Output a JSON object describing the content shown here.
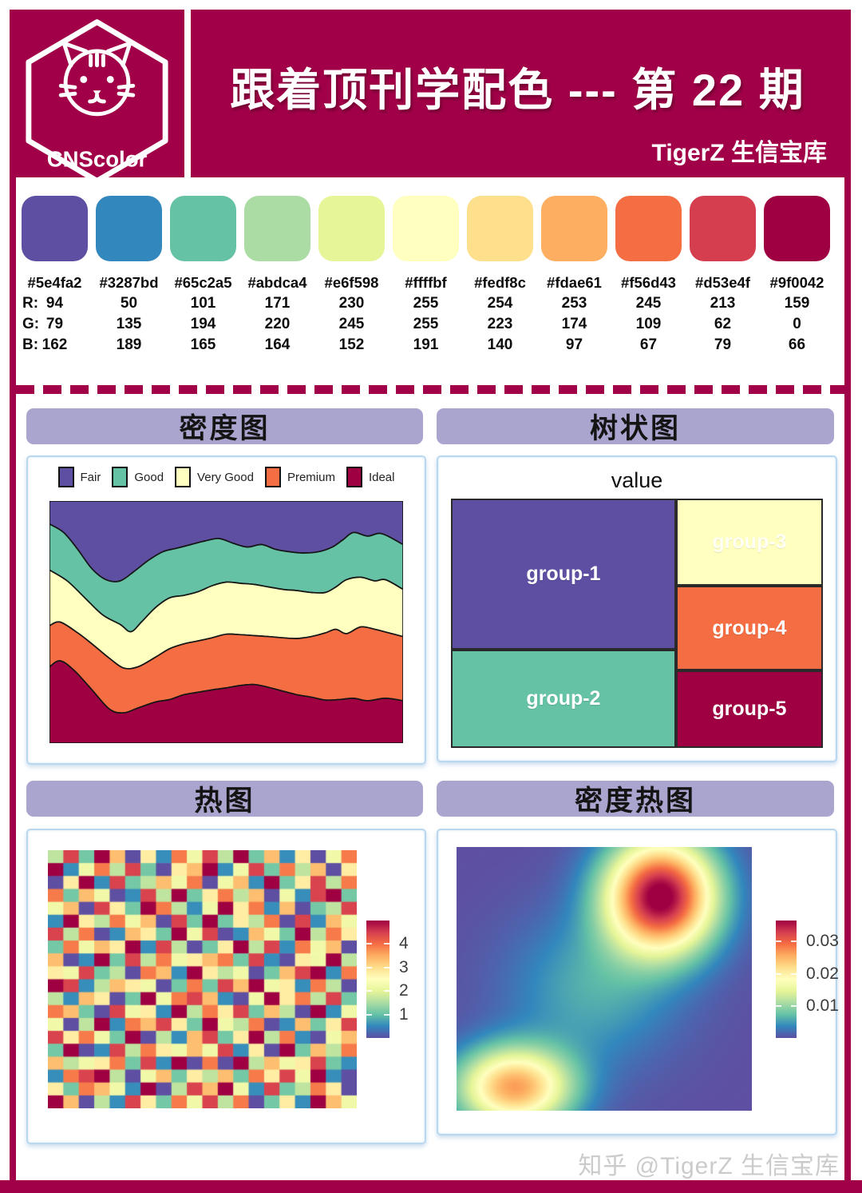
{
  "header": {
    "logo_text": "CNScolor",
    "title": "跟着顶刊学配色 --- 第 22 期",
    "subtitle": "TigerZ 生信宝库"
  },
  "palette": {
    "row_labels": [
      "R:",
      "G:",
      "B:"
    ],
    "swatches": [
      {
        "hex": "#5e4fa2",
        "rgb": [
          94,
          79,
          162
        ]
      },
      {
        "hex": "#3287bd",
        "rgb": [
          50,
          135,
          189
        ]
      },
      {
        "hex": "#65c2a5",
        "rgb": [
          101,
          194,
          165
        ]
      },
      {
        "hex": "#abdca4",
        "rgb": [
          171,
          220,
          164
        ]
      },
      {
        "hex": "#e6f598",
        "rgb": [
          230,
          245,
          152
        ]
      },
      {
        "hex": "#ffffbf",
        "rgb": [
          255,
          255,
          191
        ]
      },
      {
        "hex": "#fedf8c",
        "rgb": [
          254,
          223,
          140
        ]
      },
      {
        "hex": "#fdae61",
        "rgb": [
          253,
          174,
          97
        ]
      },
      {
        "hex": "#f56d43",
        "rgb": [
          245,
          109,
          67
        ]
      },
      {
        "hex": "#d53e4f",
        "rgb": [
          213,
          62,
          79
        ]
      },
      {
        "hex": "#9f0042",
        "rgb": [
          159,
          0,
          66
        ]
      }
    ]
  },
  "panel_titles": {
    "density": "密度图",
    "treemap": "树状图",
    "heatmap": "热图",
    "density2d": "密度热图"
  },
  "chart_data": [
    {
      "type": "area",
      "name": "stacked-density",
      "legend": [
        "Fair",
        "Good",
        "Very Good",
        "Premium",
        "Ideal"
      ],
      "colors": [
        "#5e4fa2",
        "#65c2a5",
        "#ffffbf",
        "#f56d43",
        "#9f0042"
      ],
      "note": "boundaries are [x,y] fractions of plot box, y measured from top",
      "boundaries": {
        "fair_good": [
          [
            0,
            0.095
          ],
          [
            0.04,
            0.13
          ],
          [
            0.08,
            0.2
          ],
          [
            0.12,
            0.28
          ],
          [
            0.16,
            0.325
          ],
          [
            0.2,
            0.33
          ],
          [
            0.24,
            0.29
          ],
          [
            0.28,
            0.245
          ],
          [
            0.32,
            0.21
          ],
          [
            0.36,
            0.195
          ],
          [
            0.4,
            0.18
          ],
          [
            0.44,
            0.165
          ],
          [
            0.48,
            0.155
          ],
          [
            0.52,
            0.175
          ],
          [
            0.56,
            0.19
          ],
          [
            0.6,
            0.18
          ],
          [
            0.64,
            0.2
          ],
          [
            0.68,
            0.21
          ],
          [
            0.72,
            0.215
          ],
          [
            0.76,
            0.21
          ],
          [
            0.8,
            0.19
          ],
          [
            0.83,
            0.16
          ],
          [
            0.86,
            0.13
          ],
          [
            0.9,
            0.145
          ],
          [
            0.94,
            0.135
          ],
          [
            1,
            0.18
          ]
        ],
        "good_verygood": [
          [
            0,
            0.285
          ],
          [
            0.05,
            0.33
          ],
          [
            0.1,
            0.4
          ],
          [
            0.15,
            0.47
          ],
          [
            0.2,
            0.51
          ],
          [
            0.23,
            0.54
          ],
          [
            0.26,
            0.5
          ],
          [
            0.3,
            0.44
          ],
          [
            0.34,
            0.4
          ],
          [
            0.38,
            0.39
          ],
          [
            0.42,
            0.375
          ],
          [
            0.46,
            0.35
          ],
          [
            0.5,
            0.335
          ],
          [
            0.54,
            0.34
          ],
          [
            0.58,
            0.345
          ],
          [
            0.62,
            0.355
          ],
          [
            0.66,
            0.365
          ],
          [
            0.7,
            0.37
          ],
          [
            0.74,
            0.378
          ],
          [
            0.78,
            0.378
          ],
          [
            0.81,
            0.355
          ],
          [
            0.84,
            0.325
          ],
          [
            0.88,
            0.315
          ],
          [
            0.92,
            0.33
          ],
          [
            0.95,
            0.325
          ],
          [
            1,
            0.365
          ]
        ],
        "verygood_premium": [
          [
            0,
            0.515
          ],
          [
            0.03,
            0.5
          ],
          [
            0.08,
            0.545
          ],
          [
            0.12,
            0.59
          ],
          [
            0.17,
            0.65
          ],
          [
            0.21,
            0.69
          ],
          [
            0.25,
            0.685
          ],
          [
            0.3,
            0.645
          ],
          [
            0.34,
            0.61
          ],
          [
            0.38,
            0.59
          ],
          [
            0.42,
            0.578
          ],
          [
            0.46,
            0.565
          ],
          [
            0.5,
            0.55
          ],
          [
            0.54,
            0.552
          ],
          [
            0.58,
            0.556
          ],
          [
            0.62,
            0.56
          ],
          [
            0.66,
            0.565
          ],
          [
            0.7,
            0.568
          ],
          [
            0.74,
            0.56
          ],
          [
            0.78,
            0.545
          ],
          [
            0.81,
            0.53
          ],
          [
            0.84,
            0.548
          ],
          [
            0.88,
            0.52
          ],
          [
            0.92,
            0.53
          ],
          [
            0.96,
            0.545
          ],
          [
            1,
            0.56
          ]
        ],
        "premium_ideal": [
          [
            0,
            0.685
          ],
          [
            0.03,
            0.66
          ],
          [
            0.07,
            0.7
          ],
          [
            0.12,
            0.78
          ],
          [
            0.17,
            0.86
          ],
          [
            0.21,
            0.875
          ],
          [
            0.25,
            0.855
          ],
          [
            0.3,
            0.83
          ],
          [
            0.34,
            0.82
          ],
          [
            0.38,
            0.8
          ],
          [
            0.42,
            0.79
          ],
          [
            0.46,
            0.78
          ],
          [
            0.5,
            0.772
          ],
          [
            0.54,
            0.762
          ],
          [
            0.58,
            0.758
          ],
          [
            0.62,
            0.77
          ],
          [
            0.66,
            0.785
          ],
          [
            0.7,
            0.8
          ],
          [
            0.74,
            0.81
          ],
          [
            0.78,
            0.822
          ],
          [
            0.82,
            0.82
          ],
          [
            0.86,
            0.815
          ],
          [
            0.9,
            0.825
          ],
          [
            0.95,
            0.815
          ],
          [
            1,
            0.825
          ]
        ]
      }
    },
    {
      "type": "treemap",
      "title": "value",
      "groups": [
        {
          "label": "group-1",
          "color": "#5e4fa2",
          "x": 0,
          "y": 0,
          "w": 0.605,
          "h": 0.606
        },
        {
          "label": "group-2",
          "color": "#65c2a5",
          "x": 0,
          "y": 0.606,
          "w": 0.605,
          "h": 0.394
        },
        {
          "label": "group-3",
          "color": "#ffffbf",
          "x": 0.605,
          "y": 0,
          "w": 0.395,
          "h": 0.35
        },
        {
          "label": "group-4",
          "color": "#f56d43",
          "x": 0.605,
          "y": 0.35,
          "w": 0.395,
          "h": 0.34
        },
        {
          "label": "group-5",
          "color": "#9f0042",
          "x": 0.605,
          "y": 0.69,
          "w": 0.395,
          "h": 0.31
        }
      ]
    },
    {
      "type": "heatmap",
      "grid_size": [
        20,
        20
      ],
      "value_scale": {
        "digit_max": 9,
        "value_max": 5
      },
      "colorbar_ticks": [
        4,
        3,
        2,
        1
      ],
      "rows": [
        "38296051748392615047",
        "91473820569148273605",
        "05918236470461925837",
        "72640183925736041892",
        "46085297314957160238",
        "19537460829253708164",
        "83701652948016429375",
        "27465918302593817460",
        "60192837456728105493",
        "54823076195340268917",
        "98136540272869451730",
        "31650294786104957382",
        "76208451937582630914",
        "40391768529437016258",
        "85742903168259371046",
        "29018375464815092637",
        "63457281907093645821",
        "17893046253627584910",
        "52764190386941823750",
        "96031852748370251964"
      ]
    },
    {
      "type": "density2d",
      "vmax": 0.0365,
      "colorbar_ticks": [
        0.03,
        0.02,
        0.01
      ],
      "peaks": [
        {
          "x": 0.69,
          "y": 0.185,
          "amp": 0.0375,
          "sx": 0.13,
          "sy": 0.15
        },
        {
          "x": 0.195,
          "y": 0.91,
          "amp": 0.026,
          "sx": 0.135,
          "sy": 0.105
        },
        {
          "x": 0.46,
          "y": 0.54,
          "amp": 0.006,
          "sx": 0.2,
          "sy": 0.2
        }
      ]
    }
  ],
  "footer": {
    "watermark": "知乎 @TigerZ 生信宝库"
  },
  "theme": {
    "frame": "#a10048",
    "header_bar": "#aaa5cf",
    "card_border": "#b9d8ef",
    "spectral": [
      "#5e4fa2",
      "#3287bd",
      "#65c2a5",
      "#abdca4",
      "#e6f598",
      "#ffffbf",
      "#fedf8c",
      "#fdae61",
      "#f56d43",
      "#d53e4f",
      "#9f0042"
    ]
  }
}
